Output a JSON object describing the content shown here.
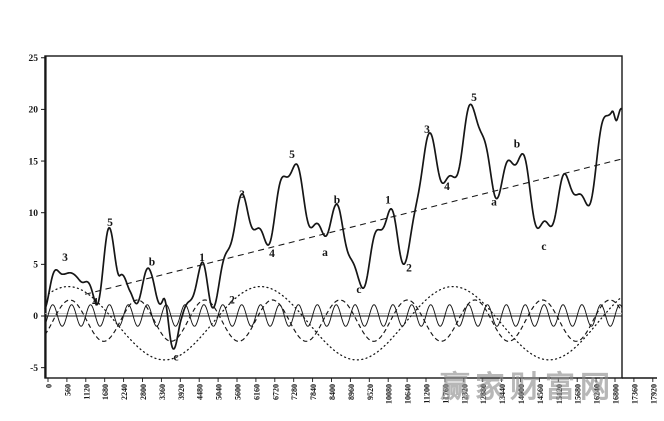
{
  "watermark": {
    "text": "赢家财富网",
    "color": "#8c8c8c"
  },
  "chart_data": {
    "type": "line",
    "title": "",
    "xlabel": "",
    "ylabel": "",
    "xlim": [
      0,
      17920
    ],
    "ylim": [
      -5,
      25
    ],
    "grid": false,
    "legend": false,
    "y_ticks": [
      "25",
      "20",
      "15",
      "10",
      "5",
      "0",
      "-5"
    ],
    "x_ticks": [
      "0",
      "560",
      "1120",
      "1680",
      "2240",
      "2800",
      "3360",
      "3920",
      "4480",
      "5040",
      "5600",
      "6160",
      "6720",
      "7280",
      "7840",
      "8400",
      "8960",
      "9520",
      "10080",
      "10640",
      "11200",
      "11760",
      "12320",
      "12880",
      "13440",
      "14000",
      "14560",
      "15120",
      "15680",
      "16240",
      "16800",
      "17360",
      "17920"
    ],
    "baseline_value": 0,
    "series": [
      {
        "name": "composite-elliott-wave",
        "style": "solid-bold",
        "ripple": {
          "period": 560,
          "amplitude": 0.95
        },
        "anchors": [
          [
            -90,
            1.5
          ],
          [
            415,
            5.0
          ],
          [
            711,
            3.2
          ],
          [
            948,
            4.3
          ],
          [
            1393,
            1.3
          ],
          [
            1807,
            7.6
          ],
          [
            2133,
            4.8
          ],
          [
            2430,
            1.6
          ],
          [
            3081,
            3.9
          ],
          [
            3407,
            1.1
          ],
          [
            3674,
            -2.6
          ],
          [
            3941,
            -0.6
          ],
          [
            4533,
            4.5
          ],
          [
            4859,
            1.7
          ],
          [
            5778,
            10.9
          ],
          [
            6400,
            7.2
          ],
          [
            7200,
            14.6
          ],
          [
            8000,
            8.0
          ],
          [
            8593,
            9.9
          ],
          [
            9215,
            3.2
          ],
          [
            10074,
            9.9
          ],
          [
            10607,
            5.7
          ],
          [
            11259,
            16.9
          ],
          [
            11881,
            12.6
          ],
          [
            12622,
            20.1
          ],
          [
            13274,
            12.3
          ],
          [
            13926,
            15.7
          ],
          [
            14667,
            8.2
          ],
          [
            15437,
            13.3
          ],
          [
            15881,
            10.6
          ],
          [
            16711,
            20.6
          ],
          [
            16860,
            18.4
          ],
          [
            17007,
            19.3
          ]
        ]
      },
      {
        "name": "trend-line",
        "style": "long-dash",
        "points": [
          [
            1100,
            2.1
          ],
          [
            17000,
            15.2
          ]
        ]
      },
      {
        "name": "minor-cycle-sine",
        "style": "solid-thin",
        "sine": {
          "period": 560,
          "amplitude": 1.05,
          "center": 0.05,
          "peak_x": 140
        }
      },
      {
        "name": "intermediate-cycle-sine",
        "style": "dashed",
        "sine": {
          "period": 2000,
          "amplitude": 2.0,
          "center": -0.45,
          "peak_x": 12650
        }
      },
      {
        "name": "primary-cycle-sine",
        "style": "dotted",
        "sine": {
          "period": 5700,
          "amplitude": 3.55,
          "center": -0.7,
          "peak_x": 12000
        }
      }
    ],
    "wave_labels": [
      {
        "cycle": 1,
        "label": "3",
        "x": 504,
        "y": 5.7
      },
      {
        "cycle": 1,
        "label": "4",
        "x": 1393,
        "y": 1.4
      },
      {
        "cycle": 1,
        "label": "5",
        "x": 1837,
        "y": 9.1
      },
      {
        "cycle": 1,
        "label": "b",
        "x": 3081,
        "y": 5.3
      },
      {
        "cycle": 1,
        "label": "c",
        "x": 3793,
        "y": -3.9
      },
      {
        "cycle": 2,
        "label": "1",
        "x": 4563,
        "y": 5.7
      },
      {
        "cycle": 2,
        "label": "2",
        "x": 5452,
        "y": 1.6
      },
      {
        "cycle": 2,
        "label": "3",
        "x": 5748,
        "y": 11.8
      },
      {
        "cycle": 2,
        "label": "4",
        "x": 6637,
        "y": 6.1
      },
      {
        "cycle": 2,
        "label": "5",
        "x": 7229,
        "y": 15.7
      },
      {
        "cycle": 2,
        "label": "a",
        "x": 8207,
        "y": 6.2
      },
      {
        "cycle": 2,
        "label": "b",
        "x": 8563,
        "y": 11.3
      },
      {
        "cycle": 2,
        "label": "c",
        "x": 9214,
        "y": 2.6
      },
      {
        "cycle": 3,
        "label": "1",
        "x": 10074,
        "y": 11.3
      },
      {
        "cycle": 3,
        "label": "2",
        "x": 10696,
        "y": 4.7
      },
      {
        "cycle": 3,
        "label": "3",
        "x": 11229,
        "y": 18.1
      },
      {
        "cycle": 3,
        "label": "4",
        "x": 11822,
        "y": 12.6
      },
      {
        "cycle": 3,
        "label": "5",
        "x": 12622,
        "y": 21.2
      },
      {
        "cycle": 3,
        "label": "a",
        "x": 13215,
        "y": 11.1
      },
      {
        "cycle": 3,
        "label": "b",
        "x": 13896,
        "y": 16.7
      },
      {
        "cycle": 3,
        "label": "c",
        "x": 14696,
        "y": 6.8
      }
    ],
    "line_color": "#161616"
  }
}
